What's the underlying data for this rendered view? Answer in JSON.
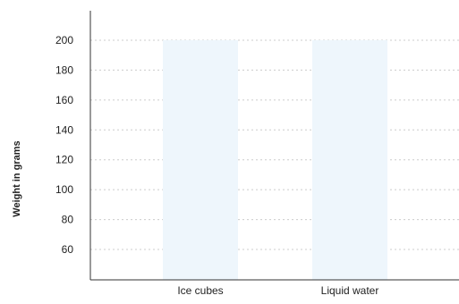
{
  "chart_data": {
    "type": "bar",
    "categories": [
      "Ice cubes",
      "Liquid water"
    ],
    "values": [
      200,
      200
    ],
    "title": "",
    "xlabel": "",
    "ylabel": "Weight in grams",
    "ylim": [
      40,
      210
    ],
    "yticks": [
      60,
      80,
      100,
      120,
      140,
      160,
      180,
      200
    ],
    "grid": true,
    "colors": {
      "bar": "#eef6fc",
      "axis": "#333333",
      "grid": "#cccccc",
      "text": "#222222"
    }
  }
}
